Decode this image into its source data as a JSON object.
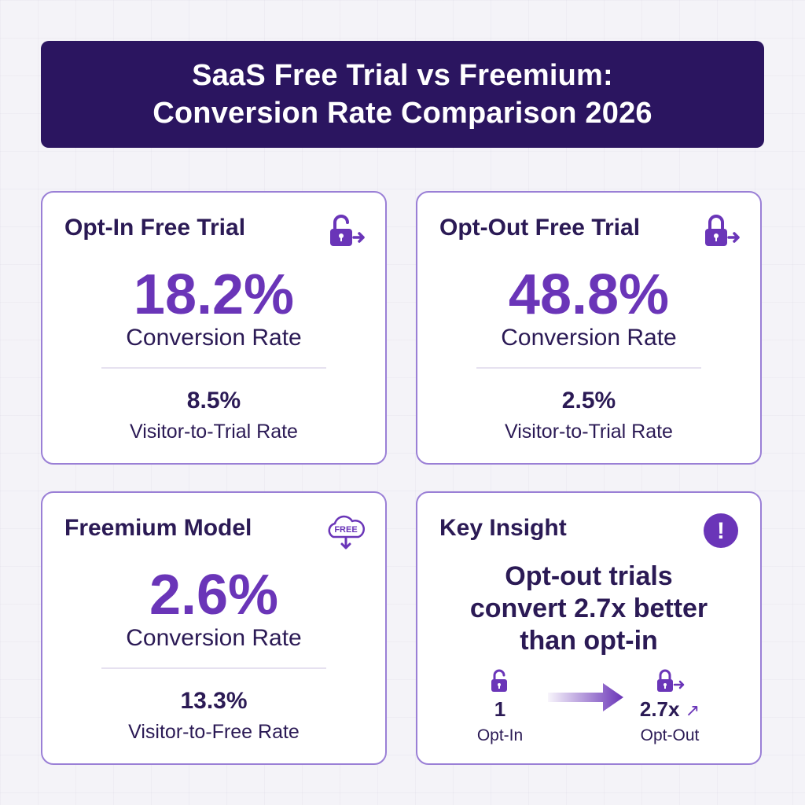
{
  "header": {
    "title_line1": "SaaS Free Trial vs Freemium:",
    "title_line2": "Conversion Rate Comparison 2026"
  },
  "cards": [
    {
      "title": "Opt-In Free Trial",
      "icon": "unlock-exit-icon",
      "value": "18.2%",
      "value_label": "Conversion Rate",
      "sub_value": "8.5%",
      "sub_label": "Visitor-to-Trial Rate"
    },
    {
      "title": "Opt-Out Free Trial",
      "icon": "lock-exit-icon",
      "value": "48.8%",
      "value_label": "Conversion Rate",
      "sub_value": "2.5%",
      "sub_label": "Visitor-to-Trial Rate"
    },
    {
      "title": "Freemium Model",
      "icon": "free-cloud-download-icon",
      "icon_text": "FREE",
      "value": "2.6%",
      "value_label": "Conversion Rate",
      "sub_value": "13.3%",
      "sub_label": "Visitor-to-Free Rate"
    }
  ],
  "insight": {
    "title": "Key Insight",
    "icon": "exclamation-icon",
    "icon_text": "!",
    "line1": "Opt-out trials",
    "line2": "convert 2.7x better",
    "line3": "than opt-in",
    "left_value": "1",
    "left_label": "Opt-In",
    "right_value": "2.7x",
    "right_label": "Opt-Out",
    "trend_glyph": "↗"
  },
  "colors": {
    "banner": "#2b1560",
    "accent": "#6a35b8",
    "border": "#9a7fd6",
    "text": "#2b1a55"
  }
}
